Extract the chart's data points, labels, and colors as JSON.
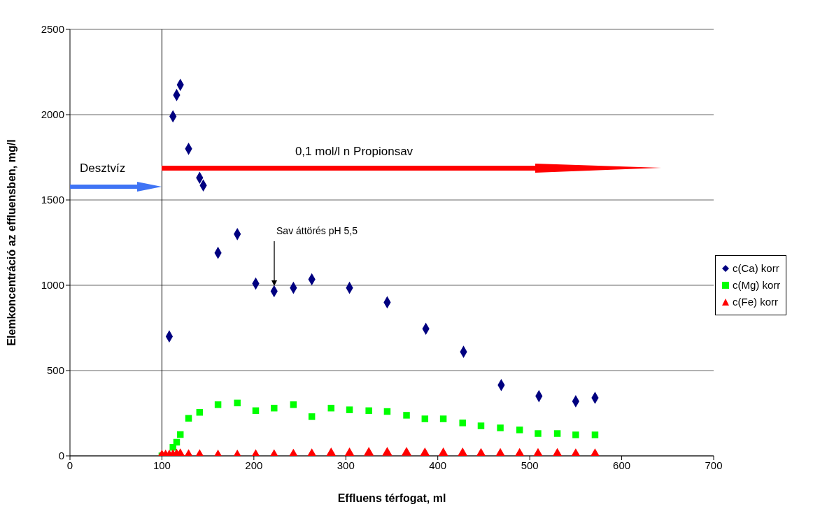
{
  "chart_data": {
    "type": "scatter",
    "xlabel": "Effluens térfogat, ml",
    "ylabel": "Elemkoncentráció az effluensben, mg/l",
    "xlim": [
      0,
      700
    ],
    "xticks": [
      0,
      100,
      200,
      300,
      400,
      500,
      600,
      700
    ],
    "ylim": [
      0,
      2500
    ],
    "yticks": [
      0,
      500,
      1000,
      1500,
      2000,
      2500
    ],
    "grid": "y",
    "legend": "right",
    "series": [
      {
        "name": "c(Ca) korr",
        "color": "#000080",
        "marker": "diamond",
        "x": [
          108,
          112,
          116,
          120,
          129,
          141,
          145,
          161,
          182,
          202,
          222,
          243,
          263,
          304,
          345,
          387,
          428,
          469,
          510,
          550,
          571
        ],
        "values": [
          700,
          1990,
          2115,
          2175,
          1800,
          1630,
          1585,
          1190,
          1300,
          1010,
          965,
          985,
          1035,
          985,
          900,
          745,
          610,
          415,
          350,
          320,
          340
        ]
      },
      {
        "name": "c(Mg) korr",
        "color": "#00ff00",
        "marker": "square",
        "x": [
          100,
          108,
          112,
          116,
          120,
          129,
          141,
          161,
          182,
          202,
          222,
          243,
          263,
          284,
          304,
          325,
          345,
          366,
          386,
          406,
          427,
          447,
          468,
          489,
          509,
          530,
          550,
          571
        ],
        "values": [
          0,
          null,
          50,
          80,
          125,
          220,
          255,
          300,
          310,
          265,
          280,
          300,
          230,
          280,
          270,
          265,
          260,
          238,
          217,
          217,
          193,
          176,
          164,
          152,
          131,
          131,
          123,
          123
        ]
      },
      {
        "name": "c(Fe) korr",
        "color": "#ff0000",
        "marker": "triangle",
        "x": [
          100,
          104,
          108,
          112,
          116,
          120,
          129,
          141,
          161,
          182,
          202,
          222,
          243,
          263,
          284,
          304,
          325,
          345,
          366,
          386,
          406,
          427,
          447,
          468,
          489,
          509,
          530,
          550,
          571
        ],
        "values": [
          3,
          3,
          3,
          5,
          8,
          10,
          5,
          5,
          3,
          3,
          5,
          5,
          8,
          10,
          15,
          15,
          18,
          18,
          18,
          15,
          15,
          15,
          12,
          12,
          12,
          12,
          12,
          10,
          10
        ]
      }
    ],
    "ref_lines": [
      {
        "axis": "x",
        "value": 100,
        "color": "#000000"
      }
    ],
    "annotations": [
      "Desztvíz",
      "0,1 mol/l n Propionsav",
      "Sav áttörés pH 5,5"
    ]
  }
}
